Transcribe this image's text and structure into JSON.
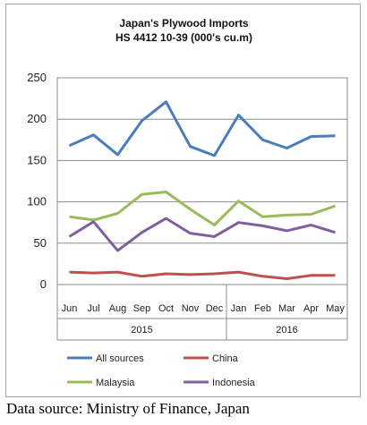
{
  "chart_data": {
    "type": "line",
    "title": "Japan's Plywood Imports",
    "subtitle": "HS 4412 10-39  (000's cu.m)",
    "categories": [
      "Jun",
      "Jul",
      "Aug",
      "Sep",
      "Oct",
      "Nov",
      "Dec",
      "Jan",
      "Feb",
      "Mar",
      "Apr",
      "May"
    ],
    "year_groups": [
      {
        "label": "2015",
        "start": 0,
        "end": 6
      },
      {
        "label": "2016",
        "start": 7,
        "end": 11
      }
    ],
    "ylim": [
      0,
      250
    ],
    "yticks": [
      0,
      50,
      100,
      150,
      200,
      250
    ],
    "grid": true,
    "legend_position": "bottom",
    "series": [
      {
        "name": "All sources",
        "color": "#4a7ebb",
        "values": [
          168,
          181,
          157,
          198,
          221,
          167,
          156,
          205,
          175,
          165,
          179,
          180
        ]
      },
      {
        "name": "China",
        "color": "#c0504d",
        "values": [
          15,
          14,
          15,
          10,
          13,
          12,
          13,
          15,
          10,
          7,
          11,
          11
        ]
      },
      {
        "name": "Malaysia",
        "color": "#9bbb59",
        "values": [
          82,
          78,
          86,
          109,
          112,
          91,
          72,
          101,
          82,
          84,
          85,
          95
        ]
      },
      {
        "name": "Indonesia",
        "color": "#7f5f9f",
        "values": [
          58,
          76,
          41,
          63,
          80,
          62,
          58,
          75,
          71,
          65,
          72,
          63
        ]
      }
    ]
  },
  "source_note": "Data source: Ministry of Finance, Japan"
}
